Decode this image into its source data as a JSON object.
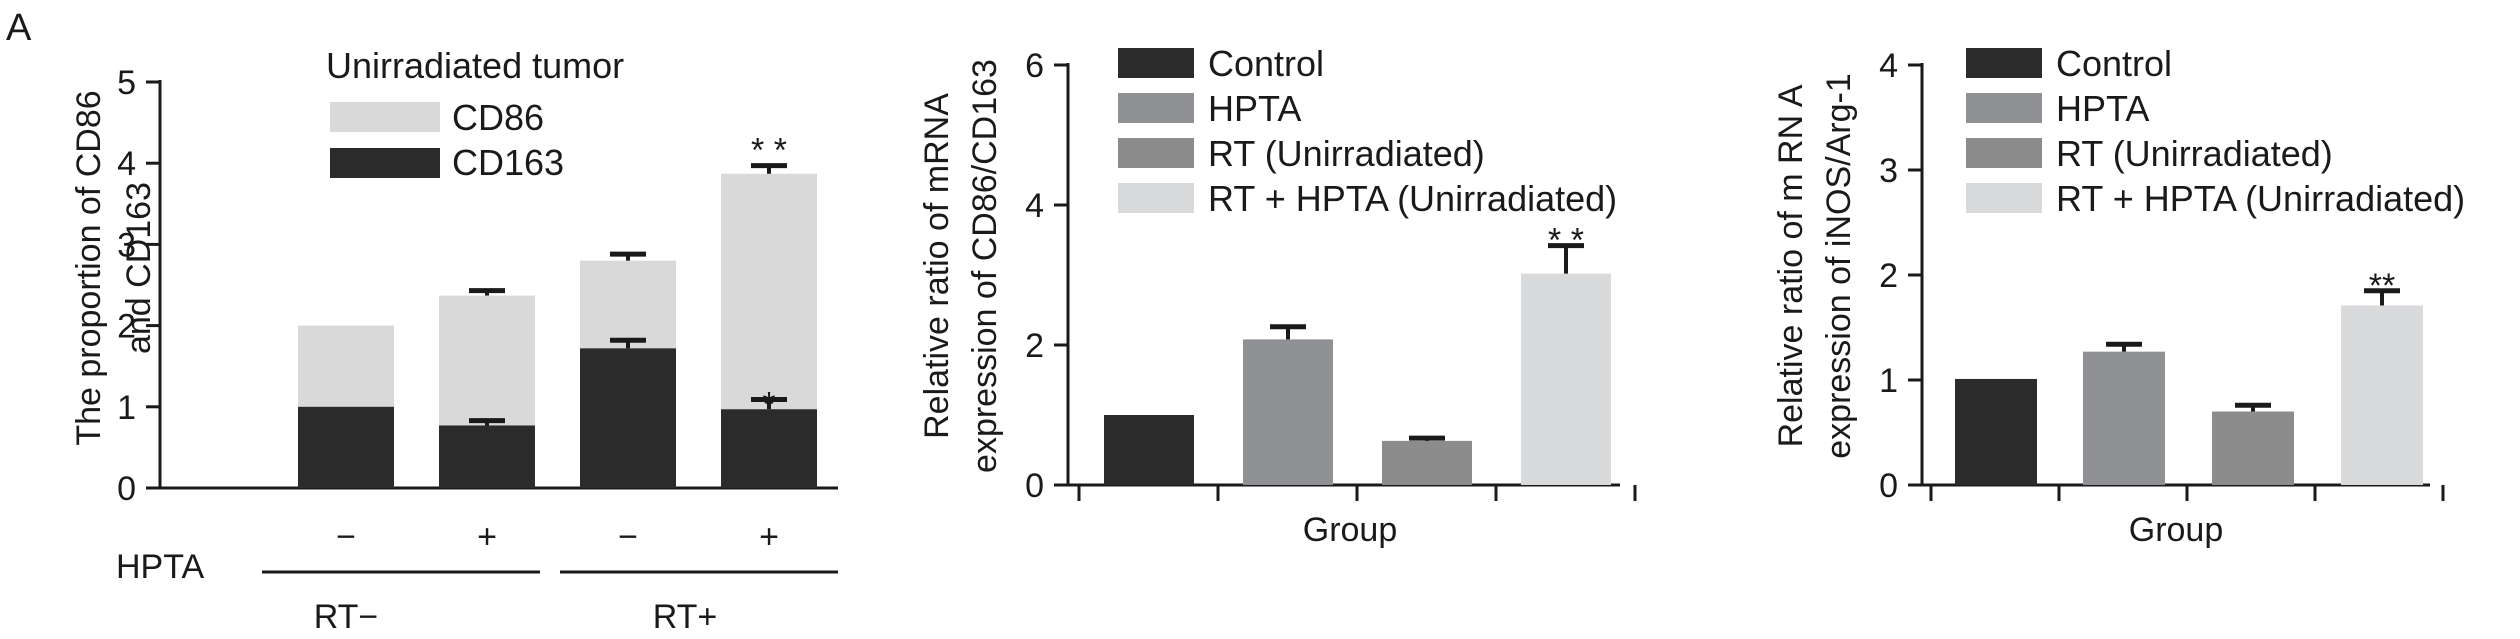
{
  "panel_letter": "A",
  "chart_data": [
    {
      "type": "bar",
      "stacked": true,
      "title": "Unirradiated tumor",
      "ylabel": [
        "The proportion of CD86",
        "and CD163"
      ],
      "xlabel": "",
      "ylim": [
        0,
        5
      ],
      "yticks": [
        0,
        1,
        2,
        3,
        4,
        5
      ],
      "categories": [
        "−",
        "+",
        "−",
        "+"
      ],
      "factor_label": "HPTA",
      "group_labels": [
        "RT−",
        "RT+"
      ],
      "legend_position": "top-left",
      "series": [
        {
          "name": "CD86",
          "color": "#d9d9d9",
          "values": [
            1.0,
            1.6,
            1.08,
            2.9
          ],
          "errors": [
            0,
            0.06,
            0.08,
            0.1
          ],
          "stars": [
            "",
            "",
            "",
            "* *"
          ]
        },
        {
          "name": "CD163",
          "color": "#2b2b2b",
          "values": [
            1.0,
            0.77,
            1.72,
            0.97
          ],
          "errors": [
            0,
            0.06,
            0.1,
            0.12
          ],
          "stars": [
            "",
            "",
            "",
            "*"
          ]
        }
      ]
    },
    {
      "type": "bar",
      "title": "",
      "ylabel": [
        "Relative ratio of mRNA",
        "expression of CD86/CD163"
      ],
      "xlabel": "Group",
      "ylim": [
        0,
        6
      ],
      "yticks": [
        0,
        2,
        4,
        6
      ],
      "legend_position": "top",
      "categories": [
        "Control",
        "HPTA",
        "RT (Unirradiated)",
        "RT + HPTA (Unirradiated)"
      ],
      "colors": [
        "#2b2b2b",
        "#8f9194",
        "#8c8c8c",
        "#d9dadb"
      ],
      "values": [
        1.0,
        2.08,
        0.63,
        3.02
      ],
      "errors": [
        0,
        0.18,
        0.04,
        0.4
      ],
      "stars": [
        "",
        "",
        "",
        "* *"
      ]
    },
    {
      "type": "bar",
      "title": "",
      "ylabel": [
        "Relative ratio of m RN A",
        "expression of iNOS/Arg-1"
      ],
      "xlabel": "Group",
      "ylim": [
        0,
        4
      ],
      "yticks": [
        0,
        1,
        2,
        3,
        4
      ],
      "legend_position": "top",
      "categories": [
        "Control",
        "HPTA",
        "RT (Unirradiated)",
        "RT + HPTA (Unirradiated)"
      ],
      "colors": [
        "#2b2b2b",
        "#8f9194",
        "#8c8c8c",
        "#d9dadb"
      ],
      "values": [
        1.01,
        1.27,
        0.7,
        1.71
      ],
      "errors": [
        0,
        0.07,
        0.06,
        0.14
      ],
      "stars": [
        "",
        "",
        "",
        "**"
      ]
    }
  ]
}
